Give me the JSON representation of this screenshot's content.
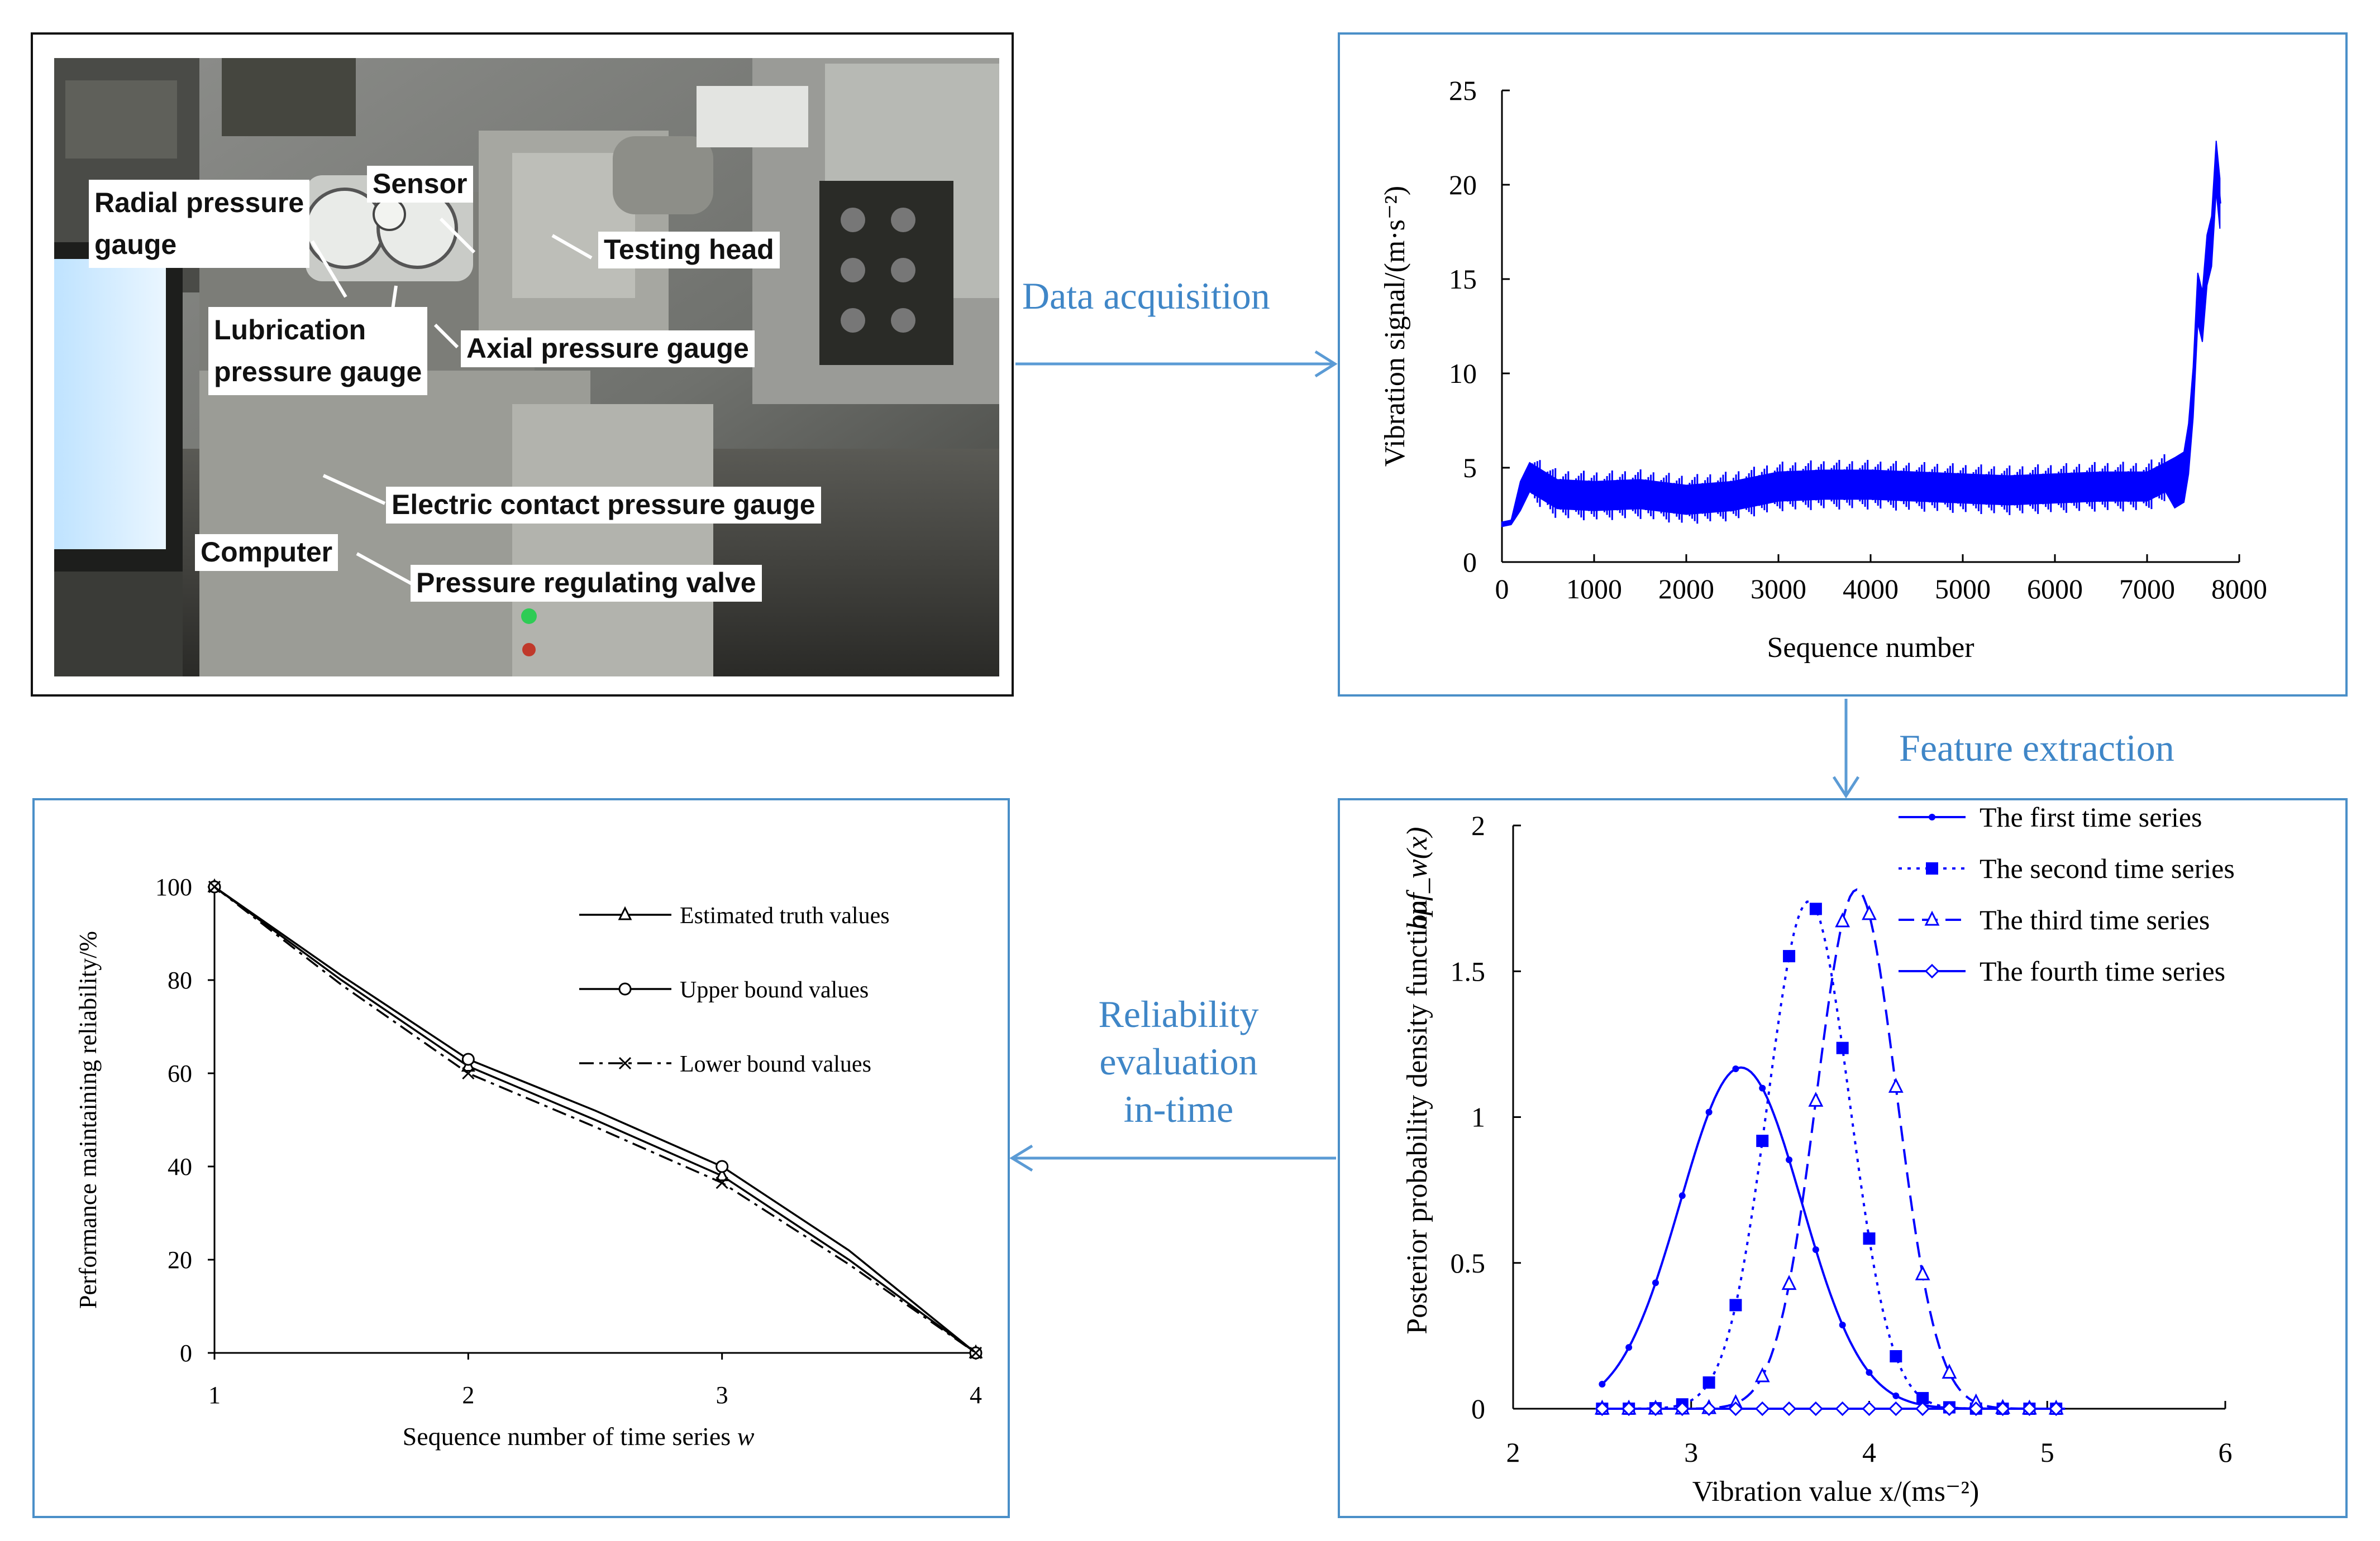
{
  "photo": {
    "labels": [
      "Radial pressure\ngauge",
      "Sensor",
      "Testing head",
      "Lubrication\npressure gauge",
      "Axial pressure gauge",
      "Electric contact pressure gauge",
      "Computer",
      "Pressure regulating valve"
    ]
  },
  "flow": {
    "data_acquisition": "Data acquisition",
    "feature_extraction": "Feature extraction",
    "reliability": [
      "Reliability",
      "evaluation",
      "in-time"
    ]
  },
  "colors": {
    "blue": "#0000ff",
    "arrow": "#5b9bd5",
    "panel_border": "#4a8fc8",
    "flow_text": "#3f86c7"
  },
  "chart_data": [
    {
      "type": "line",
      "name": "vibration-signal",
      "xlabel": "Sequence number",
      "ylabel": "Vibration signal/(m·s⁻²)",
      "xlim": [
        0,
        8000
      ],
      "ylim": [
        0,
        25
      ],
      "xticks": [
        0,
        1000,
        2000,
        3000,
        4000,
        5000,
        6000,
        7000,
        8000
      ],
      "yticks": [
        0,
        5,
        10,
        15,
        20,
        25
      ],
      "x": [
        0,
        100,
        200,
        300,
        600,
        1000,
        1500,
        2000,
        2500,
        3000,
        3500,
        4000,
        4500,
        5000,
        5500,
        6000,
        6500,
        7000,
        7200,
        7300,
        7400,
        7450,
        7500,
        7550,
        7600,
        7650,
        7700,
        7750,
        7790
      ],
      "y": [
        2.0,
        2.1,
        3.5,
        4.5,
        3.6,
        3.5,
        3.6,
        3.3,
        3.5,
        4.0,
        4.1,
        4.1,
        4.0,
        3.9,
        3.8,
        3.9,
        4.0,
        4.0,
        4.5,
        4.2,
        4.5,
        6.0,
        9.0,
        14.0,
        13.0,
        16.0,
        17.0,
        21.0,
        19.0
      ]
    },
    {
      "type": "line",
      "name": "posterior-pdf",
      "xlabel": "Vibration value x/(ms⁻²)",
      "ylabel": "Posterior probability density function",
      "ylabel_math": "hpf_w(x)",
      "xlim": [
        2,
        6
      ],
      "ylim": [
        0,
        2
      ],
      "xticks": [
        2,
        3,
        4,
        5,
        6
      ],
      "yticks": [
        0,
        0.5,
        1,
        1.5,
        2
      ],
      "series": [
        {
          "name": "The first time series",
          "line": "solid",
          "marker": "dot",
          "mean": 3.28,
          "sd": 0.34,
          "peak": 1.17
        },
        {
          "name": "The second time series",
          "line": "dotted",
          "marker": "square",
          "mean": 3.66,
          "sd": 0.23,
          "peak": 1.74
        },
        {
          "name": "The third time series",
          "line": "dashed",
          "marker": "triangle",
          "mean": 3.93,
          "sd": 0.225,
          "peak": 1.78
        },
        {
          "name": "The fourth time series",
          "line": "solid",
          "marker": "diamond",
          "mean": 3.8,
          "sd": 1.0,
          "peak": 0.0
        }
      ],
      "marker_x": [
        2.5,
        2.65,
        2.8,
        2.95,
        3.1,
        3.25,
        3.4,
        3.55,
        3.7,
        3.85,
        4.0,
        4.15,
        4.3,
        4.45,
        4.6,
        4.75,
        4.9,
        5.05
      ]
    },
    {
      "type": "line",
      "name": "reliability",
      "xlabel": "Sequence number of time series",
      "xlabel_var": "w",
      "ylabel": "Performance maintaining reliability/%",
      "xlim": [
        1,
        4
      ],
      "ylim": [
        0,
        100
      ],
      "xticks": [
        1,
        2,
        3,
        4
      ],
      "yticks": [
        0,
        20,
        40,
        60,
        80,
        100
      ],
      "series": [
        {
          "name": "Estimated truth values",
          "marker": "triangle",
          "dash": "solid",
          "x": [
            1,
            1.5,
            2,
            2.5,
            3,
            3.5,
            4
          ],
          "y": [
            100,
            80,
            61.5,
            50,
            38,
            20,
            0
          ]
        },
        {
          "name": "Upper bound values",
          "marker": "circle",
          "dash": "solid",
          "x": [
            1,
            1.5,
            2,
            2.5,
            3,
            3.5,
            4
          ],
          "y": [
            100,
            81,
            63,
            52,
            40,
            22,
            0
          ]
        },
        {
          "name": "Lower bound values",
          "marker": "x",
          "dash": "dashdot",
          "x": [
            1,
            1.5,
            2,
            2.5,
            3,
            3.5,
            4
          ],
          "y": [
            100,
            79,
            60,
            48.5,
            36.5,
            19,
            0
          ]
        }
      ]
    }
  ]
}
